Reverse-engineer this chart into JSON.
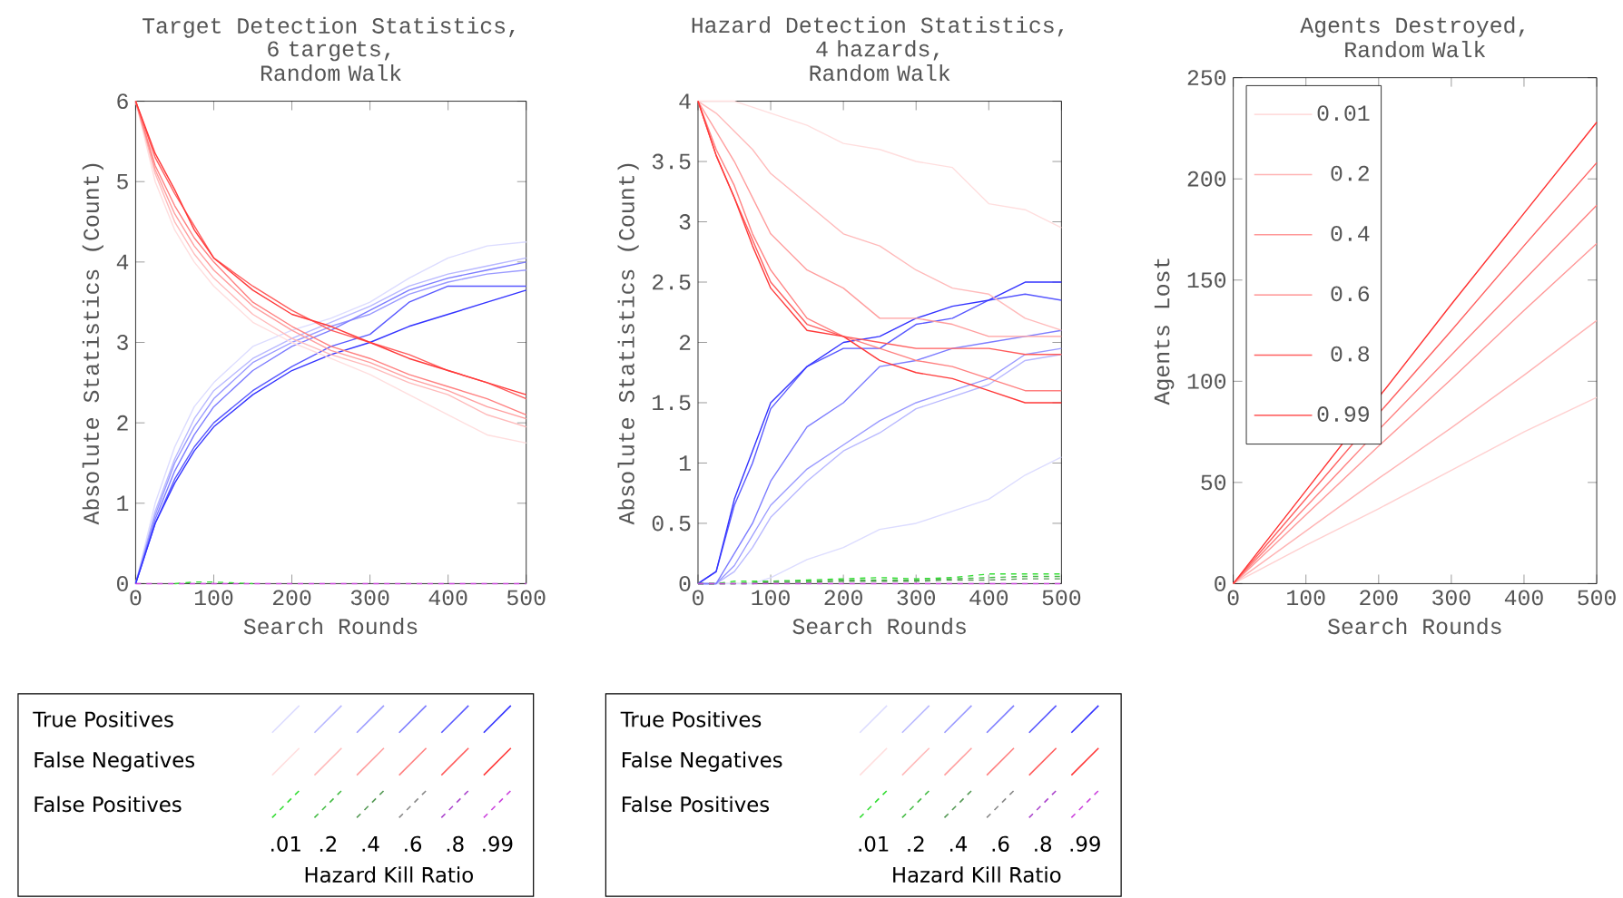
{
  "chart_data": [
    {
      "type": "line",
      "title": "Target Detection Statistics,",
      "subtitle": "6 targets, Random Walk",
      "xlabel": "Search Rounds",
      "ylabel": "Absolute Statistics (Count)",
      "xlim": [
        0,
        500
      ],
      "ylim": [
        0,
        6
      ],
      "xticks": [
        0,
        100,
        200,
        300,
        400,
        500
      ],
      "yticks": [
        0,
        1,
        2,
        3,
        4,
        5,
        6
      ],
      "legend": "bottom",
      "legend_title": "Hazard Kill Ratio",
      "annotations": [
        "True Positives",
        "False Negatives",
        "False Positives",
        ".01",
        ".2",
        ".4",
        ".6",
        ".8",
        ".99"
      ],
      "x": [
        0,
        25,
        50,
        75,
        100,
        150,
        200,
        250,
        300,
        350,
        400,
        450,
        500
      ],
      "series": [
        {
          "color": "#dcdcff",
          "values": [
            0,
            1.0,
            1.7,
            2.2,
            2.5,
            2.95,
            3.15,
            3.3,
            3.5,
            3.8,
            4.05,
            4.2,
            4.25
          ]
        },
        {
          "color": "#b8b8ff",
          "values": [
            0,
            0.9,
            1.55,
            2.05,
            2.4,
            2.8,
            3.05,
            3.25,
            3.45,
            3.7,
            3.85,
            3.95,
            4.05
          ]
        },
        {
          "color": "#9a9aff",
          "values": [
            0,
            0.85,
            1.5,
            1.95,
            2.3,
            2.75,
            3.0,
            3.2,
            3.35,
            3.6,
            3.75,
            3.85,
            3.9
          ]
        },
        {
          "color": "#7c7cff",
          "values": [
            0,
            0.8,
            1.4,
            1.85,
            2.2,
            2.65,
            2.95,
            3.15,
            3.4,
            3.65,
            3.8,
            3.9,
            4.0
          ]
        },
        {
          "color": "#5858ff",
          "values": [
            0,
            0.75,
            1.3,
            1.7,
            2.0,
            2.4,
            2.7,
            2.95,
            3.1,
            3.5,
            3.7,
            3.7,
            3.7
          ]
        },
        {
          "color": "#3232ff",
          "values": [
            0,
            0.75,
            1.25,
            1.65,
            1.95,
            2.35,
            2.65,
            2.85,
            3.0,
            3.2,
            3.35,
            3.5,
            3.65
          ]
        },
        {
          "color": "#ffdede",
          "values": [
            6,
            5.0,
            4.4,
            4.0,
            3.7,
            3.25,
            3.0,
            2.8,
            2.6,
            2.35,
            2.1,
            1.85,
            1.75
          ]
        },
        {
          "color": "#ffbaba",
          "values": [
            6,
            5.1,
            4.5,
            4.1,
            3.8,
            3.35,
            3.05,
            2.85,
            2.7,
            2.5,
            2.35,
            2.1,
            1.95
          ]
        },
        {
          "color": "#ff9e9e",
          "values": [
            6,
            5.15,
            4.6,
            4.2,
            3.9,
            3.45,
            3.15,
            2.9,
            2.75,
            2.55,
            2.4,
            2.2,
            2.05
          ]
        },
        {
          "color": "#ff8080",
          "values": [
            6,
            5.2,
            4.7,
            4.3,
            4.0,
            3.5,
            3.2,
            2.95,
            2.8,
            2.6,
            2.45,
            2.3,
            2.1
          ]
        },
        {
          "color": "#ff5c5c",
          "values": [
            6,
            5.3,
            4.85,
            4.45,
            4.05,
            3.7,
            3.4,
            3.15,
            3.0,
            2.85,
            2.65,
            2.5,
            2.3
          ]
        },
        {
          "color": "#ff3838",
          "values": [
            6,
            5.35,
            4.9,
            4.4,
            4.05,
            3.65,
            3.35,
            3.2,
            3.0,
            2.8,
            2.65,
            2.5,
            2.35
          ]
        },
        {
          "color": "#33dd33",
          "line_style": "dashed",
          "values": [
            null,
            null,
            0,
            0.02,
            0.02,
            0,
            null,
            null,
            null,
            null,
            null,
            null,
            null
          ]
        },
        {
          "color": "#44bb44",
          "line_style": "dashed",
          "values": [
            null,
            null,
            null,
            null,
            null,
            null,
            null,
            null,
            null,
            null,
            null,
            null,
            null
          ]
        },
        {
          "color": "#559955",
          "line_style": "dashed",
          "values": [
            null,
            null,
            null,
            null,
            null,
            null,
            null,
            null,
            null,
            null,
            null,
            null,
            null
          ]
        },
        {
          "color": "#888888",
          "line_style": "dashed",
          "values": [
            null,
            null,
            null,
            null,
            null,
            null,
            null,
            null,
            null,
            null,
            null,
            null,
            null
          ]
        },
        {
          "color": "#aa44cc",
          "line_style": "dashed",
          "values": [
            null,
            null,
            null,
            null,
            null,
            null,
            null,
            null,
            null,
            null,
            null,
            null,
            null
          ]
        },
        {
          "color": "#cc44dd",
          "line_style": "dashed",
          "values": [
            0,
            0,
            0,
            0,
            0,
            0,
            0,
            0,
            0,
            0,
            0,
            0,
            0
          ]
        }
      ]
    },
    {
      "type": "line",
      "title": "Hazard Detection Statistics,",
      "subtitle": "4 hazards, Random Walk",
      "xlabel": "Search Rounds",
      "ylabel": "Absolute Statistics (Count)",
      "xlim": [
        0,
        500
      ],
      "ylim": [
        0,
        4
      ],
      "xticks": [
        0,
        100,
        200,
        300,
        400,
        500
      ],
      "yticks": [
        0,
        0.5,
        1,
        1.5,
        2,
        2.5,
        3,
        3.5,
        4
      ],
      "legend": "bottom",
      "legend_title": "Hazard Kill Ratio",
      "annotations": [
        "True Positives",
        "False Negatives",
        "False Positives",
        ".01",
        ".2",
        ".4",
        ".6",
        ".8",
        ".99"
      ],
      "x": [
        0,
        25,
        50,
        75,
        100,
        150,
        200,
        250,
        300,
        350,
        400,
        450,
        500
      ],
      "series": [
        {
          "color": "#dcdcff",
          "values": [
            0,
            0,
            0,
            0,
            0.05,
            0.2,
            0.3,
            0.45,
            0.5,
            0.6,
            0.7,
            0.9,
            1.05
          ]
        },
        {
          "color": "#b8b8ff",
          "values": [
            0,
            0,
            0.1,
            0.3,
            0.55,
            0.85,
            1.1,
            1.25,
            1.45,
            1.55,
            1.65,
            1.85,
            1.9
          ]
        },
        {
          "color": "#9a9aff",
          "values": [
            0,
            0,
            0.15,
            0.4,
            0.65,
            0.95,
            1.15,
            1.35,
            1.5,
            1.6,
            1.7,
            1.9,
            1.95
          ]
        },
        {
          "color": "#7c7cff",
          "values": [
            0,
            0,
            0.25,
            0.5,
            0.85,
            1.3,
            1.5,
            1.8,
            1.85,
            1.95,
            2.0,
            2.05,
            2.1
          ]
        },
        {
          "color": "#5858ff",
          "values": [
            0,
            0.1,
            0.65,
            1.0,
            1.45,
            1.8,
            1.95,
            1.95,
            2.15,
            2.2,
            2.35,
            2.4,
            2.35
          ]
        },
        {
          "color": "#3232ff",
          "values": [
            0,
            0.1,
            0.7,
            1.1,
            1.5,
            1.8,
            2.0,
            2.05,
            2.2,
            2.3,
            2.35,
            2.5,
            2.5
          ]
        },
        {
          "color": "#ffdede",
          "values": [
            4,
            4,
            4,
            3.95,
            3.9,
            3.8,
            3.65,
            3.6,
            3.5,
            3.45,
            3.15,
            3.1,
            2.95
          ]
        },
        {
          "color": "#ffbaba",
          "values": [
            4,
            3.9,
            3.75,
            3.6,
            3.4,
            3.15,
            2.9,
            2.8,
            2.6,
            2.45,
            2.4,
            2.2,
            2.1
          ]
        },
        {
          "color": "#ff9e9e",
          "values": [
            4,
            3.75,
            3.5,
            3.2,
            2.9,
            2.6,
            2.45,
            2.2,
            2.2,
            2.15,
            2.05,
            2.05,
            2.05
          ]
        },
        {
          "color": "#ff8080",
          "values": [
            4,
            3.6,
            3.3,
            2.9,
            2.6,
            2.2,
            2.05,
            1.95,
            1.85,
            1.8,
            1.7,
            1.6,
            1.6
          ]
        },
        {
          "color": "#ff5c5c",
          "values": [
            4,
            3.55,
            3.2,
            2.85,
            2.5,
            2.15,
            2.05,
            2.0,
            1.95,
            1.95,
            1.95,
            1.9,
            1.9
          ]
        },
        {
          "color": "#ff3838",
          "values": [
            4,
            3.55,
            3.2,
            2.8,
            2.45,
            2.1,
            2.05,
            1.85,
            1.75,
            1.7,
            1.6,
            1.5,
            1.5
          ]
        },
        {
          "color": "#33dd33",
          "line_style": "dashed",
          "values": [
            0,
            0,
            0.02,
            0.02,
            0.02,
            0.03,
            0.04,
            0.05,
            0.04,
            0.05,
            0.08,
            0.08,
            0.08
          ]
        },
        {
          "color": "#44bb44",
          "line_style": "dashed",
          "values": [
            0,
            0,
            0,
            0.01,
            0.02,
            0.02,
            0.03,
            0.03,
            0.03,
            0.04,
            0.05,
            0.06,
            0.06
          ]
        },
        {
          "color": "#559955",
          "line_style": "dashed",
          "values": [
            0,
            0,
            0,
            0,
            0.01,
            0.01,
            0.02,
            0.02,
            0.02,
            0.03,
            0.03,
            0.04,
            0.04
          ]
        },
        {
          "color": "#888888",
          "line_style": "dashed",
          "values": [
            null,
            null,
            null,
            null,
            null,
            null,
            null,
            null,
            null,
            null,
            null,
            null,
            null
          ]
        },
        {
          "color": "#aa44cc",
          "line_style": "dashed",
          "values": [
            null,
            null,
            null,
            null,
            null,
            null,
            null,
            null,
            null,
            null,
            null,
            null,
            null
          ]
        },
        {
          "color": "#cc44dd",
          "line_style": "dashed",
          "values": [
            0,
            0,
            0,
            0,
            0,
            0,
            0,
            0,
            0,
            0,
            0,
            0,
            0
          ]
        }
      ]
    },
    {
      "type": "line",
      "title": "Agents Destroyed,",
      "subtitle": "Random Walk",
      "xlabel": "Search Rounds",
      "ylabel": "Agents Lost",
      "xlim": [
        0,
        500
      ],
      "ylim": [
        0,
        250
      ],
      "xticks": [
        0,
        100,
        200,
        300,
        400,
        500
      ],
      "yticks": [
        0,
        50,
        100,
        150,
        200,
        250
      ],
      "legend": "top left",
      "x": [
        0,
        100,
        200,
        300,
        400,
        500
      ],
      "series": [
        {
          "name": "0.01",
          "color": "#ffd0d0",
          "values": [
            0,
            19,
            37,
            56,
            75,
            92
          ]
        },
        {
          "name": "0.2",
          "color": "#ffb4b4",
          "values": [
            0,
            26,
            52,
            77,
            103,
            130
          ]
        },
        {
          "name": "0.4",
          "color": "#ff9898",
          "values": [
            0,
            34,
            68,
            101,
            135,
            168
          ]
        },
        {
          "name": "0.6",
          "color": "#ff8080",
          "values": [
            0,
            38,
            76,
            113,
            150,
            187
          ]
        },
        {
          "name": "0.8",
          "color": "#ff6060",
          "values": [
            0,
            42,
            84,
            125,
            167,
            208
          ]
        },
        {
          "name": "0.99",
          "color": "#ff3030",
          "values": [
            0,
            46,
            92,
            138,
            183,
            228
          ]
        }
      ]
    }
  ]
}
